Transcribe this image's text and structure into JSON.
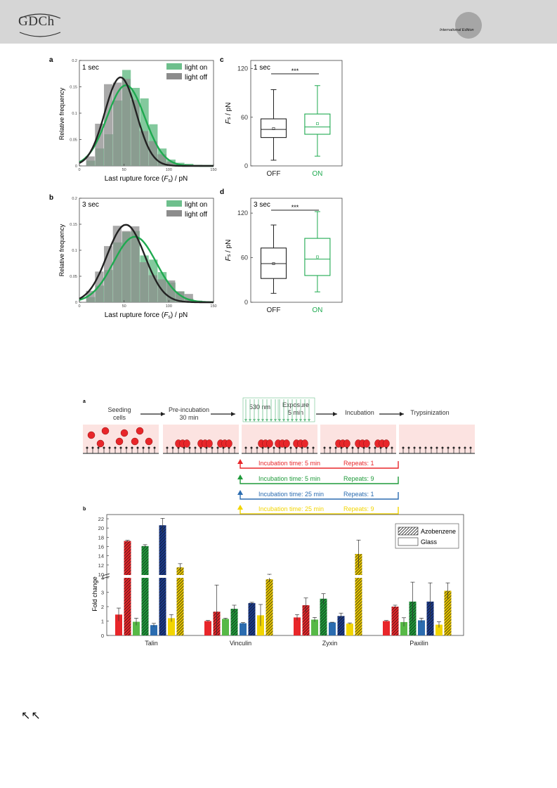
{
  "header": {
    "logo_text": "GDCh",
    "edition_text": "International Edition"
  },
  "figure_top": {
    "panel_a": {
      "label": "a",
      "time": "1 sec",
      "legend": [
        "light on",
        "light off"
      ],
      "xlabel_pre": "Last rupture force (",
      "xlabel_var": "F",
      "xlabel_sub": "s",
      "xlabel_post": ") / pN",
      "ylabel": "Relative frequency",
      "xticks": [
        "0",
        "50",
        "100",
        "150"
      ],
      "yticks": [
        "0",
        "0.05",
        "0.1",
        "0.15",
        "0.2"
      ]
    },
    "panel_b": {
      "label": "b",
      "time": "3 sec",
      "legend": [
        "light on",
        "light off"
      ],
      "xlabel_pre": "Last rupture force (",
      "xlabel_var": "F",
      "xlabel_sub": "s",
      "xlabel_post": ") / pN",
      "ylabel": "Relative frequency",
      "xticks": [
        "0",
        "50",
        "100",
        "150"
      ],
      "yticks": [
        "0",
        "0.05",
        "0.1",
        "0.15",
        "0.2"
      ]
    },
    "panel_c": {
      "label": "c",
      "time": "1 sec",
      "significance": "***",
      "ylabel_var": "F",
      "ylabel_sub": "s",
      "ylabel_post": " / pN",
      "yticks": [
        "0",
        "60",
        "120"
      ],
      "categories": [
        "OFF",
        "ON"
      ]
    },
    "panel_d": {
      "label": "d",
      "time": "3 sec",
      "significance": "***",
      "ylabel_var": "F",
      "ylabel_sub": "s",
      "ylabel_post": " / pN",
      "yticks": [
        "0",
        "60",
        "120"
      ],
      "categories": [
        "OFF",
        "ON"
      ]
    }
  },
  "figure_bottom": {
    "panel_a": {
      "label": "a",
      "steps": [
        "Seeding cells",
        "Pre-incubation 30 min",
        "530 nm",
        "Exposure 5 min",
        "Incubation",
        "Trypsinization"
      ],
      "conditions": [
        {
          "incubation": "Incubation time: 5 min",
          "repeats": "Repeats: 1",
          "color": "#e8262a"
        },
        {
          "incubation": "Incubation time: 5 min",
          "repeats": "Repeats: 9",
          "color": "#1f9a3a"
        },
        {
          "incubation": "Incubation time: 25 min",
          "repeats": "Repeats: 1",
          "color": "#2b6cb0"
        },
        {
          "incubation": "Incubation time: 25 min",
          "repeats": "Repeats: 9",
          "color": "#f2d500"
        }
      ]
    },
    "panel_b": {
      "label": "b",
      "ylabel": "Fold change",
      "legend": [
        "Azobenzene",
        "Glass"
      ],
      "yticks": [
        "0",
        "1",
        "2",
        "3",
        "4",
        "10",
        "12",
        "14",
        "16",
        "18",
        "20",
        "22"
      ]
    }
  },
  "chart_data": [
    {
      "type": "bar",
      "name": "Panel a, 1 sec",
      "x": [
        12.5,
        22.5,
        32.5,
        42.5,
        52.5,
        62.5,
        72.5,
        82.5,
        92.5,
        102.5,
        112.5,
        122.5,
        132.5,
        142.5
      ],
      "series": [
        {
          "name": "light on",
          "values": [
            0.01,
            0.033,
            0.06,
            0.124,
            0.182,
            0.148,
            0.128,
            0.079,
            0.033,
            0.012,
            0.006,
            0.004,
            0.002,
            0.001
          ],
          "color": "#6dbf8c"
        },
        {
          "name": "light off",
          "values": [
            0.018,
            0.08,
            0.155,
            0.158,
            0.165,
            0.125,
            0.066,
            0.047,
            0.022,
            0.008,
            0.003,
            0.002,
            0.002,
            0.001
          ],
          "color": "#8c8c8c"
        }
      ],
      "fits": [
        {
          "name": "light on",
          "mean": 52,
          "sd": 21,
          "peak": 0.153,
          "color": "#1faa50"
        },
        {
          "name": "light off",
          "mean": 46,
          "sd": 17.5,
          "peak": 0.168,
          "color": "#222222"
        }
      ],
      "xlim": [
        0,
        150
      ],
      "ylim": [
        0,
        0.2
      ],
      "title": "1 sec",
      "xlabel": "Last rupture force (Fs) / pN",
      "ylabel": "Relative frequency"
    },
    {
      "type": "bar",
      "name": "Panel b, 3 sec",
      "x": [
        12.5,
        22.5,
        32.5,
        42.5,
        52.5,
        62.5,
        72.5,
        82.5,
        92.5,
        102.5,
        112.5,
        122.5,
        132.5,
        142.5
      ],
      "series": [
        {
          "name": "light on",
          "values": [
            0.01,
            0.032,
            0.062,
            0.115,
            0.135,
            0.137,
            0.09,
            0.082,
            0.058,
            0.038,
            0.021,
            0.007,
            0.003,
            0.001
          ],
          "color": "#6dbf8c"
        },
        {
          "name": "light off",
          "values": [
            0.022,
            0.059,
            0.108,
            0.147,
            0.137,
            0.146,
            0.077,
            0.052,
            0.044,
            0.042,
            0.021,
            0.016,
            0.003,
            0.001
          ],
          "color": "#8c8c8c"
        }
      ],
      "fits": [
        {
          "name": "light on",
          "mean": 62,
          "sd": 24,
          "peak": 0.126,
          "color": "#1faa50"
        },
        {
          "name": "light off",
          "mean": 52,
          "sd": 21,
          "peak": 0.149,
          "color": "#222222"
        }
      ],
      "xlim": [
        0,
        150
      ],
      "ylim": [
        0,
        0.2
      ],
      "title": "3 sec",
      "xlabel": "Last rupture force (Fs) / pN",
      "ylabel": "Relative frequency"
    },
    {
      "type": "box",
      "name": "Panel c, 1 sec",
      "categories": [
        "OFF",
        "ON"
      ],
      "boxes": [
        {
          "min": 7,
          "q1": 35,
          "median": 45,
          "mean": 46,
          "q3": 58,
          "max": 94,
          "color": "#222222"
        },
        {
          "min": 12,
          "q1": 39,
          "median": 48,
          "mean": 52,
          "q3": 64,
          "max": 99,
          "color": "#1faa50"
        }
      ],
      "ylim": [
        0,
        130
      ],
      "ylabel": "Fs / pN"
    },
    {
      "type": "box",
      "name": "Panel d, 3 sec",
      "categories": [
        "OFF",
        "ON"
      ],
      "boxes": [
        {
          "min": 12,
          "q1": 32,
          "median": 52,
          "mean": 52,
          "q3": 73,
          "max": 104,
          "color": "#222222"
        },
        {
          "min": 14,
          "q1": 36,
          "median": 58,
          "mean": 61,
          "q3": 86,
          "max": 122,
          "color": "#1faa50"
        }
      ],
      "ylim": [
        0,
        140
      ],
      "ylabel": "Fs / pN"
    },
    {
      "type": "bar",
      "name": "Panel b (bottom) fold change",
      "categories": [
        "Talin",
        "Vinculin",
        "Zyxin",
        "Paxilin"
      ],
      "series": [
        {
          "name": "Glass, 5 min, 1 repeat",
          "color": "#e8262a",
          "values": [
            1.45,
            1.0,
            1.25,
            1.0
          ],
          "errors": [
            0.45,
            0.05,
            0.2,
            0.04
          ]
        },
        {
          "name": "Azobenzene, 5 min, 1 repeat",
          "color": "#e8262a",
          "values": [
            17.2,
            1.65,
            2.1,
            2.0
          ],
          "errors": [
            0.15,
            1.85,
            0.5,
            0.1
          ]
        },
        {
          "name": "Glass, 5 min, 9 repeats",
          "color": "#57b947",
          "values": [
            0.95,
            1.15,
            1.1,
            0.93
          ],
          "errors": [
            0.25,
            0.05,
            0.15,
            0.3
          ]
        },
        {
          "name": "Azobenzene, 5 min, 9 repeats",
          "color": "#1f9a3a",
          "values": [
            16.1,
            1.85,
            2.55,
            2.35
          ],
          "errors": [
            0.3,
            0.25,
            0.35,
            1.35
          ]
        },
        {
          "name": "Glass, 25 min, 1 repeat",
          "color": "#2b6cb0",
          "values": [
            0.72,
            0.85,
            0.9,
            1.05
          ],
          "errors": [
            0.12,
            0.05,
            0.02,
            0.15
          ]
        },
        {
          "name": "Azobenzene, 25 min, 1 repeat",
          "color": "#1a3a8c",
          "values": [
            20.6,
            2.25,
            1.35,
            2.35
          ],
          "errors": [
            1.5,
            0.05,
            0.2,
            1.3
          ]
        },
        {
          "name": "Glass, 25 min, 9 repeats",
          "color": "#f2d500",
          "values": [
            1.2,
            1.4,
            0.82,
            0.75
          ],
          "errors": [
            0.25,
            0.75,
            0.05,
            0.2
          ]
        },
        {
          "name": "Azobenzene, 25 min, 9 repeats",
          "color": "#e5c400",
          "values": [
            11.5,
            3.9,
            14.4,
            3.1
          ],
          "errors": [
            0.8,
            0.2,
            3.0,
            0.55
          ]
        }
      ],
      "ylabel": "Fold change",
      "ylim": [
        0,
        22
      ],
      "axis_break": [
        4,
        10
      ]
    }
  ]
}
